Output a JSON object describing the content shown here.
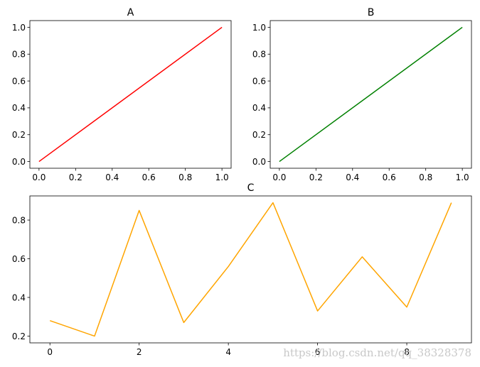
{
  "chart_data": [
    {
      "type": "line",
      "title": "A",
      "x": [
        0,
        1
      ],
      "series": [
        {
          "values": [
            0,
            1
          ],
          "color": "#ff0000"
        }
      ],
      "xlim": [
        -0.05,
        1.05
      ],
      "ylim": [
        -0.05,
        1.05
      ],
      "xticks": [
        0,
        0.2,
        0.4,
        0.6,
        0.8,
        1.0
      ],
      "xtick_labels": [
        "0.0",
        "0.2",
        "0.4",
        "0.6",
        "0.8",
        "1.0"
      ],
      "yticks": [
        0,
        0.2,
        0.4,
        0.6,
        0.8,
        1.0
      ],
      "ytick_labels": [
        "0.0",
        "0.2",
        "0.4",
        "0.6",
        "0.8",
        "1.0"
      ],
      "grid": false
    },
    {
      "type": "line",
      "title": "B",
      "x": [
        0,
        1
      ],
      "series": [
        {
          "values": [
            0,
            1
          ],
          "color": "#008000"
        }
      ],
      "xlim": [
        -0.05,
        1.05
      ],
      "ylim": [
        -0.05,
        1.05
      ],
      "xticks": [
        0,
        0.2,
        0.4,
        0.6,
        0.8,
        1.0
      ],
      "xtick_labels": [
        "0.0",
        "0.2",
        "0.4",
        "0.6",
        "0.8",
        "1.0"
      ],
      "yticks": [
        0,
        0.2,
        0.4,
        0.6,
        0.8,
        1.0
      ],
      "ytick_labels": [
        "0.0",
        "0.2",
        "0.4",
        "0.6",
        "0.8",
        "1.0"
      ],
      "grid": false
    },
    {
      "type": "line",
      "title": "C",
      "x": [
        0,
        1,
        2,
        3,
        4,
        5,
        6,
        7,
        8,
        9
      ],
      "series": [
        {
          "values": [
            0.28,
            0.2,
            0.85,
            0.27,
            0.56,
            0.89,
            0.33,
            0.61,
            0.35,
            0.89
          ],
          "color": "#ffa500"
        }
      ],
      "xlim": [
        -0.45,
        9.45
      ],
      "ylim": [
        0.165,
        0.925
      ],
      "xticks": [
        0,
        2,
        4,
        6,
        8
      ],
      "xtick_labels": [
        "0",
        "2",
        "4",
        "6",
        "8"
      ],
      "yticks": [
        0.2,
        0.4,
        0.6,
        0.8
      ],
      "ytick_labels": [
        "0.2",
        "0.4",
        "0.6",
        "0.8"
      ],
      "grid": false
    }
  ],
  "watermark": "https://blog.csdn.net/qq_38328378"
}
